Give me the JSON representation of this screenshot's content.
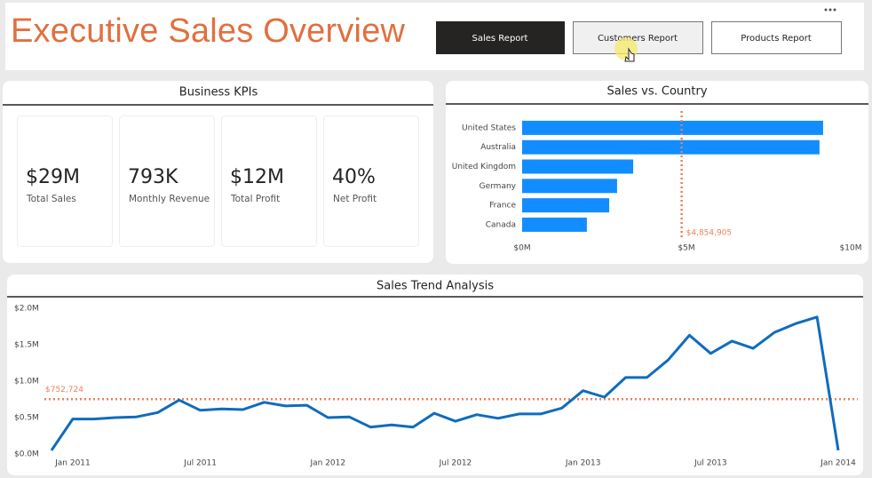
{
  "header": {
    "title": "Executive Sales Overview",
    "nav": [
      "Sales Report",
      "Customers Report",
      "Products Report"
    ]
  },
  "kpis": {
    "title": "Business KPIs",
    "cards": [
      {
        "value": "$29M",
        "label": "Total Sales"
      },
      {
        "value": "793K",
        "label": "Monthly Revenue"
      },
      {
        "value": "$12M",
        "label": "Total Profit"
      },
      {
        "value": "40%",
        "label": "Net Profit"
      }
    ]
  },
  "chart_data": [
    {
      "type": "hbar",
      "title": "Sales vs. Country",
      "categories": [
        "United States",
        "Australia",
        "United Kingdom",
        "Germany",
        "France",
        "Canada"
      ],
      "values": [
        9.16,
        9.05,
        3.38,
        2.89,
        2.65,
        1.97
      ],
      "color": "#118dff",
      "xlim": [
        0,
        10
      ],
      "xticks": [
        {
          "value": 0,
          "label": "$0M"
        },
        {
          "value": 5,
          "label": "$5M"
        },
        {
          "value": 10,
          "label": "$10M"
        }
      ],
      "reference_line": {
        "value": 4.854905,
        "label": "$4,854,905",
        "color": "#e8825a"
      }
    },
    {
      "type": "line",
      "title": "Sales Trend Analysis",
      "categories": [
        null,
        "Jan 2011",
        null,
        null,
        null,
        null,
        null,
        "Jul 2011",
        null,
        null,
        null,
        null,
        null,
        "Jan 2012",
        null,
        null,
        null,
        null,
        null,
        "Jul 2012",
        null,
        null,
        null,
        null,
        null,
        "Jan 2013",
        null,
        null,
        null,
        null,
        null,
        "Jul 2013",
        null,
        null,
        null,
        null,
        null,
        "Jan 2014"
      ],
      "values": [
        0.05,
        0.48,
        0.48,
        0.5,
        0.51,
        0.57,
        0.74,
        0.6,
        0.62,
        0.61,
        0.71,
        0.66,
        0.67,
        0.5,
        0.51,
        0.37,
        0.4,
        0.37,
        0.56,
        0.45,
        0.54,
        0.49,
        0.55,
        0.55,
        0.63,
        0.87,
        0.78,
        1.05,
        1.05,
        1.29,
        1.63,
        1.38,
        1.55,
        1.45,
        1.67,
        1.79,
        1.88,
        0.05
      ],
      "color": "#0f6cbd",
      "ylim": [
        0,
        2
      ],
      "yticks": [
        {
          "value": 0,
          "label": "$0.0M"
        },
        {
          "value": 0.5,
          "label": "$0.5M"
        },
        {
          "value": 1,
          "label": "$1.0M"
        },
        {
          "value": 1.5,
          "label": "$1.5M"
        },
        {
          "value": 2,
          "label": "$2.0M"
        }
      ],
      "reference_line": {
        "value": 0.752724,
        "label": "$752,724",
        "color": "#e8825a"
      }
    }
  ]
}
